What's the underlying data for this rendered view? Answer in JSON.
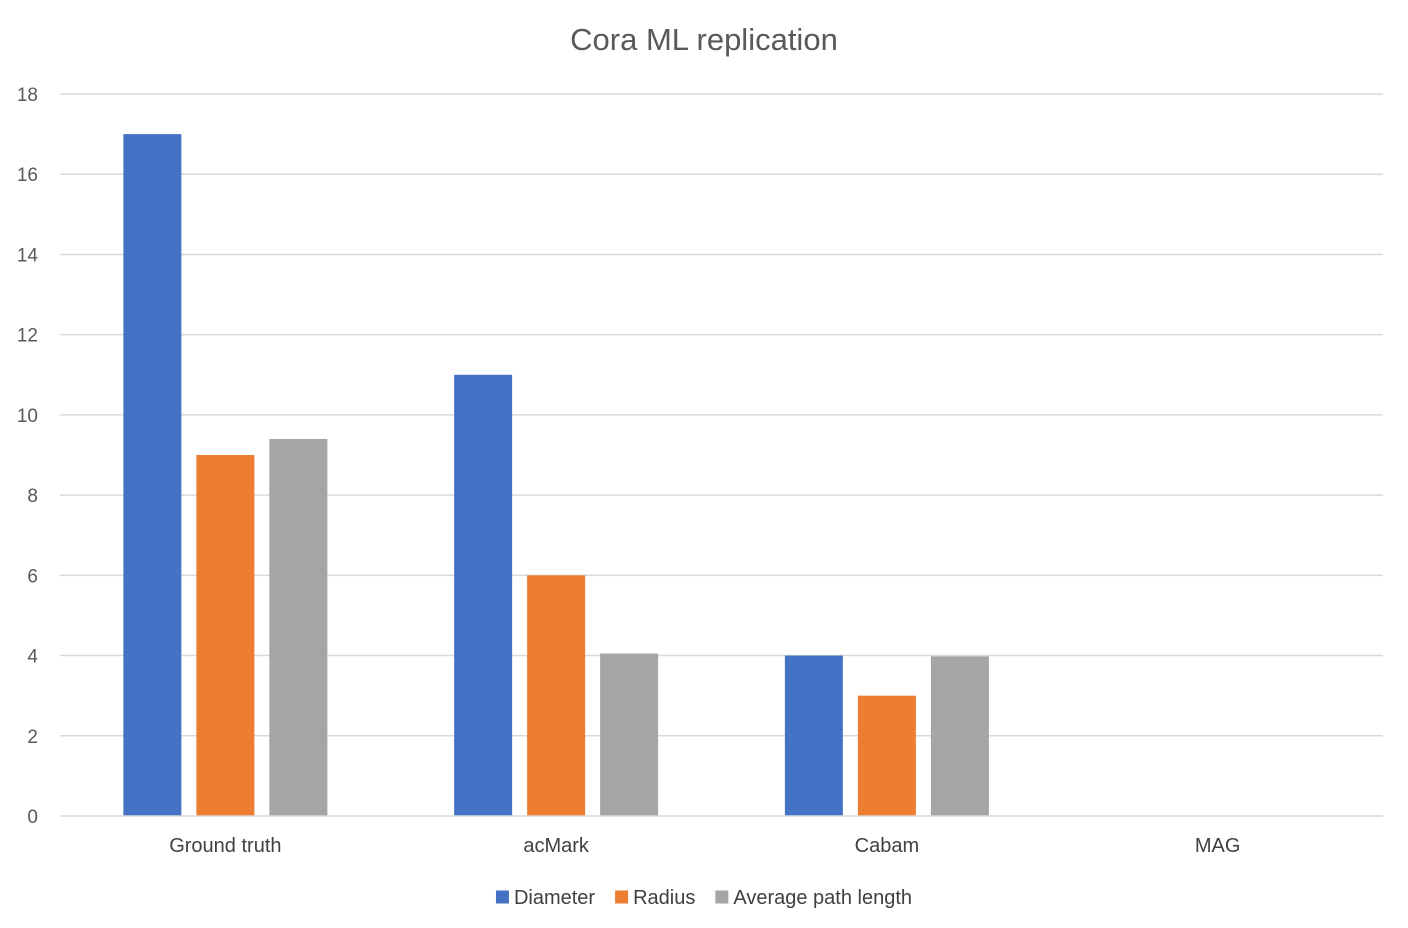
{
  "chart_data": {
    "type": "bar",
    "title": "Cora ML replication",
    "categories": [
      "Ground truth",
      "acMark",
      "Cabam",
      "MAG"
    ],
    "series": [
      {
        "name": "Diameter",
        "color": "#4472c4",
        "values": [
          17,
          11,
          4,
          0
        ]
      },
      {
        "name": "Radius",
        "color": "#ed7d31",
        "values": [
          9,
          6,
          3,
          0
        ]
      },
      {
        "name": "Average path length",
        "color": "#a5a5a5",
        "values": [
          9.4,
          4.05,
          3.98,
          0
        ]
      }
    ],
    "xlabel": "",
    "ylabel": "",
    "ylim": [
      0,
      18
    ],
    "yticks": [
      0,
      2,
      4,
      6,
      8,
      10,
      12,
      14,
      16,
      18
    ],
    "grid": true,
    "legend_position": "bottom"
  }
}
